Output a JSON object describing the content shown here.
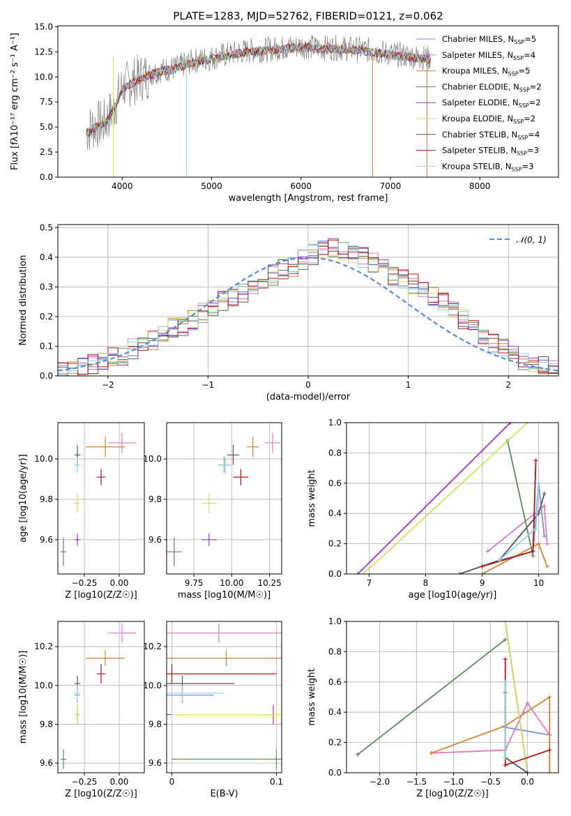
{
  "figure_title": "PLATE=1283, MJD=52762, FIBERID=0121, z=0.062",
  "colors": {
    "Chabrier MILES": "#7b8fd6",
    "Salpeter MILES": "#e377c2",
    "Kroupa MILES": "#d2822e",
    "Chabrier ELODIE": "#5c8a5c",
    "Salpeter ELODIE": "#9b35c4",
    "Kroupa ELODIE": "#d4e157",
    "Chabrier STELIB": "#555555",
    "Salpeter STELIB": "#b5121b",
    "Kroupa STELIB": "#8fd8e0",
    "data": "#808080",
    "gaussian": "#5b8bd9"
  },
  "chart_data": [
    {
      "type": "line",
      "title": "PLATE=1283, MJD=52762, FIBERID=0121, z=0.062",
      "xlabel": "wavelength [Angstrom, rest frame]",
      "ylabel": "Flux [fλ10⁻¹⁷ erg cm⁻² s⁻¹ A⁻¹]",
      "xlim": [
        3280,
        8880
      ],
      "ylim": [
        0,
        15.1
      ],
      "xticks": [
        "4000",
        "5000",
        "6000",
        "7000",
        "8000"
      ],
      "yticks": [
        "0.0",
        "2.5",
        "5.0",
        "7.5",
        "10.0",
        "12.5",
        "15.0"
      ],
      "grid": false,
      "legend_position": "right",
      "legend": [
        "Chabrier MILES, NSSP=5",
        "Salpeter MILES, NSSP=4",
        "Kroupa MILES, NSSP=5",
        "Chabrier ELODIE, NSSP=2",
        "Salpeter ELODIE, NSSP=2",
        "Kroupa ELODIE, NSSP=2",
        "Chabrier STELIB, NSSP=4",
        "Salpeter STELIB, NSSP=3",
        "Kroupa STELIB, NSSP=3"
      ],
      "data_continuum": {
        "x": [
          3600,
          3700,
          3800,
          3900,
          4000,
          4200,
          4400,
          4600,
          4800,
          5000,
          5200,
          5400,
          5600,
          5800,
          6000,
          6200,
          6400,
          6600,
          6800,
          7000,
          7200,
          7400
        ],
        "y": [
          4.6,
          5.2,
          5.4,
          6.8,
          9.0,
          9.9,
          10.6,
          10.9,
          11.6,
          11.9,
          12.3,
          12.6,
          12.7,
          12.9,
          13.1,
          12.9,
          12.9,
          12.8,
          12.6,
          12.3,
          12.1,
          11.9
        ]
      },
      "model_continuum": {
        "x": [
          3600,
          3700,
          3800,
          3900,
          4000,
          4200,
          4400,
          4600,
          4800,
          5000,
          5200,
          5400,
          5600,
          5800,
          6000,
          6200,
          6400,
          6600,
          6800,
          7000,
          7200,
          7400
        ],
        "y": [
          4.3,
          5.0,
          5.3,
          6.6,
          8.8,
          9.8,
          10.5,
          10.8,
          11.5,
          11.8,
          12.2,
          12.5,
          12.6,
          12.8,
          13.0,
          12.8,
          12.8,
          12.7,
          12.5,
          12.2,
          12.0,
          11.8
        ]
      }
    },
    {
      "type": "bar",
      "xlabel": "(data-model)/error",
      "ylabel": "Normed distribution",
      "xlim": [
        -2.5,
        2.5
      ],
      "ylim": [
        0,
        0.51
      ],
      "xticks": [
        "−2",
        "−1",
        "0",
        "1",
        "2"
      ],
      "yticks": [
        "0.0",
        "0.1",
        "0.2",
        "0.3",
        "0.4",
        "0.5"
      ],
      "grid": true,
      "legend_position": "top-right",
      "legend": [
        "𝒩(0, 1)"
      ],
      "bin_width": 0.1,
      "bin_start": -2.5,
      "histogram": [
        0.02,
        0.02,
        0.03,
        0.04,
        0.05,
        0.06,
        0.07,
        0.09,
        0.1,
        0.12,
        0.14,
        0.16,
        0.17,
        0.19,
        0.21,
        0.23,
        0.25,
        0.26,
        0.28,
        0.3,
        0.32,
        0.34,
        0.36,
        0.37,
        0.39,
        0.41,
        0.42,
        0.43,
        0.42,
        0.41,
        0.4,
        0.38,
        0.36,
        0.34,
        0.33,
        0.31,
        0.3,
        0.27,
        0.25,
        0.22,
        0.19,
        0.16,
        0.13,
        0.11,
        0.09,
        0.07,
        0.05,
        0.04,
        0.03,
        0.02
      ]
    },
    {
      "type": "scatter",
      "xlabel": "Z [log10(Z/Z☉)]",
      "ylabel": "age  [log10(age/yr)]",
      "xlim": [
        -0.44,
        0.18
      ],
      "ylim": [
        9.43,
        10.18
      ],
      "xticks": [
        "−0.25",
        "0.00"
      ],
      "yticks": [
        "9.6",
        "9.8",
        "10.0"
      ],
      "grid": true
    },
    {
      "type": "scatter",
      "xlabel": "mass [log10(M/M☉)]",
      "ylabel": "",
      "xlim": [
        9.57,
        10.33
      ],
      "ylim": [
        9.43,
        10.18
      ],
      "xticks": [
        "9.75",
        "10.00",
        "10.25"
      ],
      "yticks": [
        "9.6",
        "9.8",
        "10.0"
      ],
      "grid": true
    },
    {
      "type": "line",
      "xlabel": "age  [log10(age/yr)]",
      "ylabel": "mass weight",
      "xlim": [
        6.6,
        10.35
      ],
      "ylim": [
        0,
        1
      ],
      "xticks": [
        "7",
        "8",
        "9",
        "10"
      ],
      "yticks": [
        "0.0",
        "0.2",
        "0.4",
        "0.6",
        "0.8",
        "1.0"
      ],
      "grid": true
    },
    {
      "type": "scatter",
      "xlabel": "Z [log10(Z/Z☉)]",
      "ylabel": "mass [log10(M/M☉)]",
      "xlim": [
        -0.44,
        0.18
      ],
      "ylim": [
        9.55,
        10.33
      ],
      "xticks": [
        "−0.25",
        "0.00"
      ],
      "yticks": [
        "9.6",
        "9.8",
        "10.0",
        "10.2"
      ],
      "grid": true
    },
    {
      "type": "scatter",
      "xlabel": "E(B-V)",
      "ylabel": "",
      "xlim": [
        -0.005,
        0.105
      ],
      "ylim": [
        9.55,
        10.33
      ],
      "xticks": [
        "0",
        "0.1"
      ],
      "yticks": [
        "9.6",
        "9.8",
        "10.0",
        "10.2"
      ],
      "grid": true
    },
    {
      "type": "line",
      "xlabel": "Z [log10(Z/Z☉)]",
      "ylabel": "mass weight",
      "xlim": [
        -2.45,
        0.42
      ],
      "ylim": [
        0,
        1
      ],
      "xticks": [
        "−2.0",
        "−1.5",
        "−1.0",
        "−0.5",
        "0.0"
      ],
      "yticks": [
        "0.0",
        "0.2",
        "0.4",
        "0.6",
        "0.8",
        "1.0"
      ],
      "grid": true
    }
  ],
  "models": [
    {
      "name": "Chabrier MILES",
      "Z": -0.3,
      "Zerr": 0.02,
      "age": 9.97,
      "ageErr": 0.04,
      "mass": 9.95,
      "massErr": 0.04,
      "ebv": 0.01,
      "ebvErr": 0.03,
      "weights_age": [
        [
          9.3,
          0.09
        ],
        [
          9.9,
          0.15
        ],
        [
          10.0,
          0.6
        ],
        [
          10.1,
          0.25
        ]
      ],
      "weights_Z": [
        [
          -0.3,
          0.6
        ],
        [
          -0.3,
          0.3
        ],
        [
          0.3,
          0.25
        ],
        [
          0.3,
          0.0
        ]
      ]
    },
    {
      "name": "Salpeter MILES",
      "Z": 0.02,
      "Zerr": 0.1,
      "age": 10.08,
      "ageErr": 0.05,
      "mass": 10.27,
      "massErr": 0.05,
      "ebv": 0.045,
      "ebvErr": 0.12,
      "weights_age": [
        [
          9.1,
          0.15
        ],
        [
          10.1,
          0.45
        ],
        [
          10.15,
          0.2
        ]
      ],
      "weights_Z": [
        [
          -1.3,
          0.13
        ],
        [
          -0.3,
          0.15
        ],
        [
          0.0,
          0.46
        ],
        [
          0.3,
          0.25
        ]
      ]
    },
    {
      "name": "Kroupa MILES",
      "Z": -0.1,
      "Zerr": 0.14,
      "age": 10.06,
      "ageErr": 0.05,
      "mass": 10.14,
      "massErr": 0.04,
      "ebv": 0.052,
      "ebvErr": 0.11,
      "weights_age": [
        [
          9.0,
          0.0
        ],
        [
          10.0,
          0.2
        ],
        [
          10.15,
          0.05
        ]
      ],
      "weights_Z": [
        [
          -1.3,
          0.13
        ],
        [
          -0.3,
          0.31
        ],
        [
          0.3,
          0.5
        ],
        [
          0.3,
          0.0
        ]
      ]
    },
    {
      "name": "Chabrier ELODIE",
      "Z": -0.4,
      "Zerr": 0.02,
      "age": 9.54,
      "ageErr": 0.07,
      "mass": 9.62,
      "massErr": 0.05,
      "ebv": 0.1,
      "ebvErr": 0.1,
      "weights_age": [
        [
          9.45,
          0.88
        ],
        [
          9.9,
          0.12
        ]
      ],
      "weights_Z": [
        [
          -2.3,
          0.12
        ],
        [
          -0.3,
          0.88
        ]
      ]
    },
    {
      "name": "Salpeter ELODIE",
      "Z": -0.3,
      "Zerr": 0.02,
      "age": 9.6,
      "ageErr": 0.03,
      "mass": 9.85,
      "massErr": 0.05,
      "ebv": 0.097,
      "ebvErr": 0.12,
      "weights_age": [
        [
          6.8,
          0.0
        ],
        [
          9.5,
          1.0
        ]
      ],
      "weights_Z": [
        [
          -0.3,
          1.0
        ],
        [
          0.0,
          0.0
        ]
      ]
    },
    {
      "name": "Kroupa ELODIE",
      "Z": -0.3,
      "Zerr": 0.02,
      "age": 9.78,
      "ageErr": 0.05,
      "mass": 9.85,
      "massErr": 0.05,
      "ebv": 0.1,
      "ebvErr": 0.1,
      "weights_age": [
        [
          6.9,
          0.0
        ],
        [
          9.8,
          1.0
        ]
      ],
      "weights_Z": [
        [
          -0.3,
          1.0
        ],
        [
          0.0,
          0.0
        ]
      ]
    },
    {
      "name": "Chabrier STELIB",
      "Z": -0.3,
      "Zerr": 0.02,
      "age": 10.02,
      "ageErr": 0.05,
      "mass": 10.01,
      "massErr": 0.04,
      "ebv": 0.01,
      "ebvErr": 0.05,
      "weights_age": [
        [
          8.6,
          0.0
        ],
        [
          9.3,
          0.09
        ],
        [
          10.0,
          0.4
        ],
        [
          10.1,
          0.53
        ]
      ],
      "weights_Z": [
        [
          -0.3,
          0.53
        ],
        [
          -0.3,
          0.1
        ],
        [
          0.0,
          0.0
        ]
      ]
    },
    {
      "name": "Salpeter STELIB",
      "Z": -0.13,
      "Zerr": 0.03,
      "age": 9.91,
      "ageErr": 0.04,
      "mass": 10.06,
      "massErr": 0.05,
      "ebv": 0.0,
      "ebvErr": 0.1,
      "weights_age": [
        [
          9.0,
          0.05
        ],
        [
          9.9,
          0.15
        ],
        [
          9.95,
          0.75
        ]
      ],
      "weights_Z": [
        [
          -0.3,
          0.75
        ],
        [
          -0.3,
          0.05
        ],
        [
          0.3,
          0.15
        ]
      ]
    },
    {
      "name": "Kroupa STELIB",
      "Z": -0.3,
      "Zerr": 0.02,
      "age": 9.97,
      "ageErr": 0.04,
      "mass": 9.96,
      "massErr": 0.04,
      "ebv": 0.01,
      "ebvErr": 0.04,
      "weights_age": [
        [
          9.3,
          0.09
        ],
        [
          9.95,
          0.3
        ],
        [
          10.0,
          0.6
        ]
      ],
      "weights_Z": [
        [
          -0.3,
          0.6
        ],
        [
          -0.3,
          0.1
        ]
      ]
    }
  ]
}
